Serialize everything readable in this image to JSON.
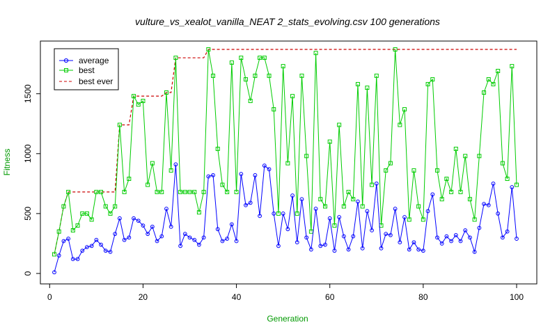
{
  "chart_data": {
    "type": "line",
    "title": "vulture_vs_xealot_vanilla_NEAT 2_stats_evolving.csv 100 generations",
    "xlabel": "Generation",
    "ylabel": "Fitness",
    "xlim": [
      1,
      100
    ],
    "ylim": [
      0,
      1870
    ],
    "x_ticks": [
      0,
      20,
      40,
      60,
      80,
      100
    ],
    "y_ticks": [
      0,
      500,
      1000,
      1500
    ],
    "legend_position": "top-left",
    "grid": false,
    "colors": {
      "average": "#0000ff",
      "best": "#00cc00",
      "best_ever": "#cc0000",
      "ylabel": "#009900",
      "xlabel": "#009900"
    },
    "x": [
      1,
      2,
      3,
      4,
      5,
      6,
      7,
      8,
      9,
      10,
      11,
      12,
      13,
      14,
      15,
      16,
      17,
      18,
      19,
      20,
      21,
      22,
      23,
      24,
      25,
      26,
      27,
      28,
      29,
      30,
      31,
      32,
      33,
      34,
      35,
      36,
      37,
      38,
      39,
      40,
      41,
      42,
      43,
      44,
      45,
      46,
      47,
      48,
      49,
      50,
      51,
      52,
      53,
      54,
      55,
      56,
      57,
      58,
      59,
      60,
      61,
      62,
      63,
      64,
      65,
      66,
      67,
      68,
      69,
      70,
      71,
      72,
      73,
      74,
      75,
      76,
      77,
      78,
      79,
      80,
      81,
      82,
      83,
      84,
      85,
      86,
      87,
      88,
      89,
      90,
      91,
      92,
      93,
      94,
      95,
      96,
      97,
      98,
      99,
      100
    ],
    "series": [
      {
        "name": "average",
        "values": [
          10,
          150,
          270,
          290,
          120,
          120,
          190,
          220,
          230,
          280,
          240,
          190,
          180,
          330,
          460,
          280,
          300,
          460,
          440,
          400,
          330,
          390,
          270,
          310,
          540,
          390,
          910,
          230,
          330,
          300,
          280,
          240,
          300,
          810,
          820,
          370,
          270,
          290,
          410,
          270,
          830,
          570,
          590,
          820,
          480,
          900,
          870,
          500,
          230,
          500,
          370,
          650,
          260,
          620,
          300,
          200,
          540,
          230,
          240,
          460,
          190,
          470,
          310,
          200,
          310,
          600,
          210,
          520,
          360,
          750,
          210,
          330,
          320,
          540,
          260,
          470,
          200,
          260,
          200,
          190,
          520,
          660,
          300,
          250,
          310,
          270,
          320,
          270,
          360,
          300,
          180,
          380,
          580,
          570,
          750,
          500,
          300,
          350,
          720,
          290
        ]
      },
      {
        "name": "best",
        "values": [
          160,
          350,
          560,
          680,
          360,
          400,
          500,
          500,
          450,
          680,
          680,
          560,
          500,
          560,
          1240,
          680,
          790,
          1480,
          1410,
          1440,
          740,
          920,
          680,
          680,
          1510,
          860,
          1800,
          680,
          680,
          680,
          680,
          510,
          680,
          1870,
          1650,
          1040,
          740,
          680,
          1760,
          680,
          1800,
          1620,
          1440,
          1650,
          1800,
          1800,
          1650,
          1370,
          500,
          1730,
          920,
          1480,
          500,
          1650,
          980,
          350,
          1840,
          620,
          560,
          1100,
          400,
          1240,
          560,
          680,
          620,
          1580,
          560,
          1550,
          740,
          1650,
          400,
          860,
          920,
          1870,
          1240,
          1370,
          450,
          860,
          560,
          450,
          1580,
          1620,
          860,
          620,
          790,
          680,
          1040,
          680,
          980,
          620,
          450,
          980,
          1510,
          1620,
          1580,
          1690,
          920,
          790,
          1730,
          740
        ]
      },
      {
        "name": "best ever",
        "values": [
          160,
          350,
          560,
          680,
          680,
          680,
          680,
          680,
          680,
          680,
          680,
          680,
          680,
          680,
          1240,
          1240,
          1240,
          1480,
          1480,
          1480,
          1480,
          1480,
          1480,
          1480,
          1510,
          1510,
          1800,
          1800,
          1800,
          1800,
          1800,
          1800,
          1800,
          1870,
          1870,
          1870,
          1870,
          1870,
          1870,
          1870,
          1870,
          1870,
          1870,
          1870,
          1870,
          1870,
          1870,
          1870,
          1870,
          1870,
          1870,
          1870,
          1870,
          1870,
          1870,
          1870,
          1870,
          1870,
          1870,
          1870,
          1870,
          1870,
          1870,
          1870,
          1870,
          1870,
          1870,
          1870,
          1870,
          1870,
          1870,
          1870,
          1870,
          1870,
          1870,
          1870,
          1870,
          1870,
          1870,
          1870,
          1870,
          1870,
          1870,
          1870,
          1870,
          1870,
          1870,
          1870,
          1870,
          1870,
          1870,
          1870,
          1870,
          1870,
          1870,
          1870,
          1870,
          1870,
          1870,
          1870
        ]
      }
    ]
  }
}
